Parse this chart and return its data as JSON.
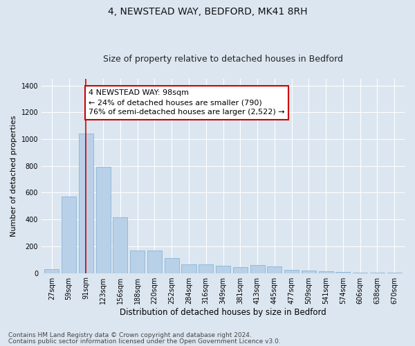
{
  "title": "4, NEWSTEAD WAY, BEDFORD, MK41 8RH",
  "subtitle": "Size of property relative to detached houses in Bedford",
  "xlabel": "Distribution of detached houses by size in Bedford",
  "ylabel": "Number of detached properties",
  "categories": [
    "27sqm",
    "59sqm",
    "91sqm",
    "123sqm",
    "156sqm",
    "188sqm",
    "220sqm",
    "252sqm",
    "284sqm",
    "316sqm",
    "349sqm",
    "381sqm",
    "413sqm",
    "445sqm",
    "477sqm",
    "509sqm",
    "541sqm",
    "574sqm",
    "606sqm",
    "638sqm",
    "670sqm"
  ],
  "values": [
    30,
    570,
    1040,
    795,
    415,
    170,
    170,
    110,
    65,
    65,
    55,
    45,
    60,
    50,
    22,
    18,
    13,
    8,
    4,
    4,
    4
  ],
  "bar_color": "#b8d0e8",
  "bar_edge_color": "#7aafd4",
  "highlight_line_index": 2,
  "highlight_line_color": "#cc0000",
  "ylim": [
    0,
    1450
  ],
  "yticks": [
    0,
    200,
    400,
    600,
    800,
    1000,
    1200,
    1400
  ],
  "annotation_text": "4 NEWSTEAD WAY: 98sqm\n← 24% of detached houses are smaller (790)\n76% of semi-detached houses are larger (2,522) →",
  "annotation_box_color": "#ffffff",
  "annotation_box_edge": "#cc0000",
  "footer_line1": "Contains HM Land Registry data © Crown copyright and database right 2024.",
  "footer_line2": "Contains public sector information licensed under the Open Government Licence v3.0.",
  "bg_color": "#dce6f0",
  "plot_bg_color": "#dce6f0",
  "title_fontsize": 10,
  "subtitle_fontsize": 9,
  "annotation_fontsize": 8,
  "tick_fontsize": 7,
  "xlabel_fontsize": 8.5,
  "ylabel_fontsize": 8,
  "footer_fontsize": 6.5
}
